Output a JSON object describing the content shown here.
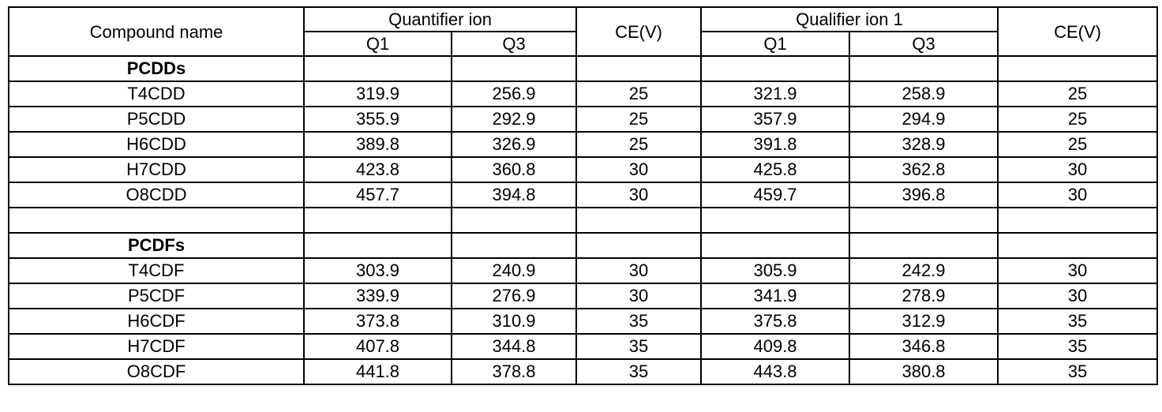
{
  "header": {
    "compound_name": "Compound name",
    "groups": [
      {
        "title": "Quantifier ion",
        "columns": [
          "Q1",
          "Q3"
        ],
        "ce": "CE(V)"
      },
      {
        "title": "Qualifier ion 1",
        "columns": [
          "Q1",
          "Q3"
        ],
        "ce": "CE(V)"
      }
    ]
  },
  "sections": [
    {
      "title": "PCDDs",
      "rows": [
        [
          "T4CDD",
          319.9,
          256.9,
          25,
          321.9,
          258.9,
          25
        ],
        [
          "P5CDD",
          355.9,
          292.9,
          25,
          357.9,
          294.9,
          25
        ],
        [
          "H6CDD",
          389.8,
          326.9,
          25,
          391.8,
          328.9,
          25
        ],
        [
          "H7CDD",
          423.8,
          360.8,
          30,
          425.8,
          362.8,
          30
        ],
        [
          "O8CDD",
          457.7,
          394.8,
          30,
          459.7,
          396.8,
          30
        ]
      ]
    },
    {
      "title": "PCDFs",
      "rows": [
        [
          "T4CDF",
          303.9,
          240.9,
          30,
          305.9,
          242.9,
          30
        ],
        [
          "P5CDF",
          339.9,
          276.9,
          30,
          341.9,
          278.9,
          30
        ],
        [
          "H6CDF",
          373.8,
          310.9,
          35,
          375.8,
          312.9,
          35
        ],
        [
          "H7CDF",
          407.8,
          344.8,
          35,
          409.8,
          346.8,
          35
        ],
        [
          "O8CDF",
          441.8,
          378.8,
          35,
          443.8,
          380.8,
          35
        ]
      ]
    }
  ]
}
